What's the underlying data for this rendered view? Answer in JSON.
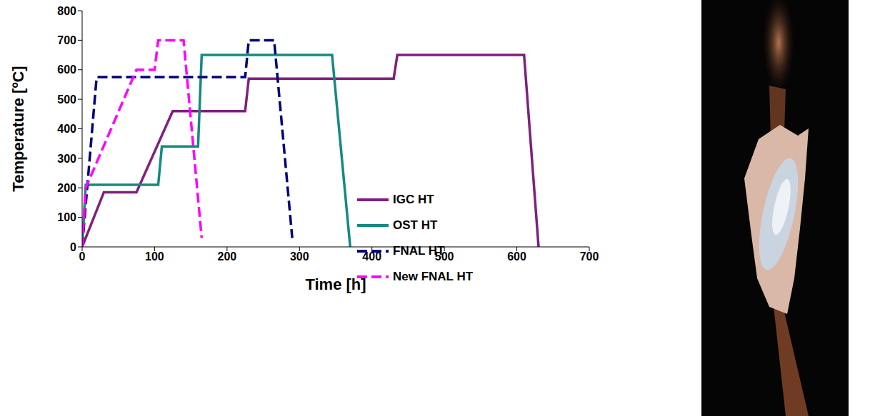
{
  "chart_data": {
    "type": "line",
    "x_label": "Time [h]",
    "y_label": "Temperature [ºC]",
    "xlim": [
      0,
      700
    ],
    "xticks": [
      0,
      100,
      200,
      300,
      400,
      500,
      600,
      700
    ],
    "ylim": [
      0,
      800
    ],
    "yticks": [
      0,
      100,
      200,
      300,
      400,
      500,
      600,
      700,
      800
    ],
    "grid": false,
    "legend": "right",
    "series": [
      {
        "name": "IGC HT",
        "color": "#7f1f7f",
        "line_style": "solid",
        "x": [
          0,
          30,
          75,
          125,
          225,
          230,
          430,
          435,
          610,
          630
        ],
        "values": [
          0,
          185,
          185,
          460,
          460,
          570,
          570,
          650,
          650,
          0
        ]
      },
      {
        "name": "OST HT",
        "color": "#138a82",
        "line_style": "solid",
        "x": [
          0,
          5,
          105,
          110,
          160,
          165,
          345,
          370
        ],
        "values": [
          0,
          210,
          210,
          340,
          340,
          650,
          650,
          0
        ]
      },
      {
        "name": "FNAL HT",
        "color": "#000080",
        "line_style": "dashed",
        "x": [
          0,
          20,
          225,
          230,
          265,
          290
        ],
        "values": [
          0,
          575,
          575,
          700,
          700,
          30
        ]
      },
      {
        "name": "New FNAL HT",
        "color": "#ff00ff",
        "line_style": "dashed",
        "x": [
          0,
          5,
          75,
          100,
          105,
          140,
          165
        ],
        "values": [
          0,
          200,
          600,
          600,
          700,
          700,
          30
        ]
      }
    ]
  }
}
